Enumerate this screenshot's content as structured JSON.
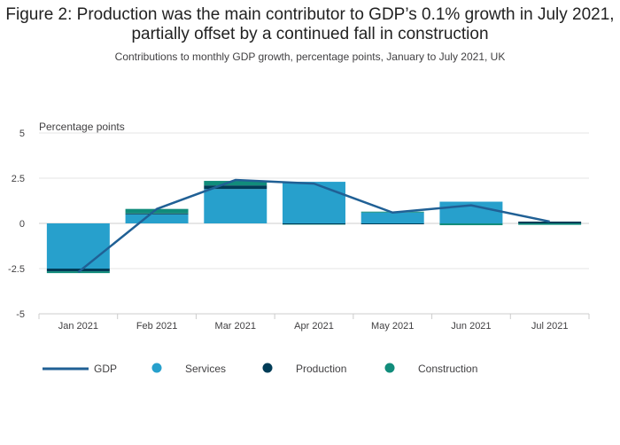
{
  "title": "Figure 2: Production was the main contributor to GDP’s 0.1% growth in July 2021, partially offset by a continued fall in construction",
  "subtitle": "Contributions to monthly GDP growth, percentage points, January to July 2021, UK",
  "chart_data": {
    "type": "bar",
    "stacked": true,
    "ylabel": "Percentage points",
    "ylim": [
      -5,
      5
    ],
    "yticks": [
      "5",
      "2.5",
      "0",
      "-2.5",
      "-5"
    ],
    "ytick_values": [
      5,
      2.5,
      0,
      -2.5,
      -5
    ],
    "categories": [
      "Jan 2021",
      "Feb 2021",
      "Mar 2021",
      "Apr 2021",
      "May 2021",
      "Jun 2021",
      "Jul 2021"
    ],
    "series": [
      {
        "name": "Services",
        "kind": "bar",
        "color": "#27a0cc",
        "values": [
          -2.5,
          0.5,
          1.9,
          2.3,
          0.6,
          1.2,
          0.0
        ]
      },
      {
        "name": "Production",
        "kind": "bar",
        "color": "#003c57",
        "values": [
          -0.15,
          0.05,
          0.2,
          -0.05,
          -0.05,
          0.0,
          0.1
        ]
      },
      {
        "name": "Construction",
        "kind": "bar",
        "color": "#118c7b",
        "values": [
          -0.1,
          0.25,
          0.25,
          -0.02,
          0.05,
          -0.1,
          -0.08
        ]
      },
      {
        "name": "GDP",
        "kind": "line",
        "color": "#206095",
        "values": [
          -2.7,
          0.8,
          2.4,
          2.2,
          0.6,
          1.0,
          0.1
        ]
      }
    ],
    "grid": true,
    "legend_position": "bottom"
  }
}
